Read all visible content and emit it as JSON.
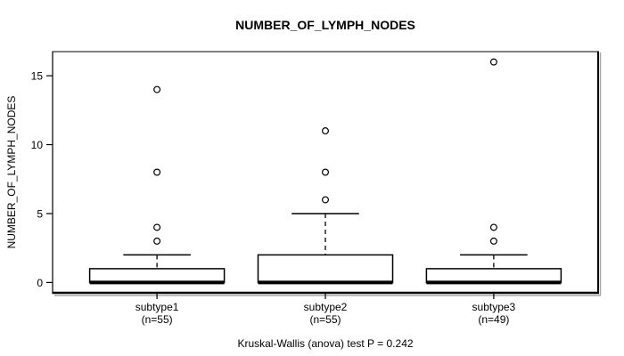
{
  "figure": {
    "title": "NUMBER_OF_LYMPH_NODES",
    "y_axis_label": "NUMBER_OF_LYMPH_NODES",
    "footnote": "Kruskal-Wallis (anova) test P = 0.242"
  },
  "colors": {
    "line": "#000000",
    "frame_top": "#808080",
    "shadow": "#a8a8a8",
    "background": "#ffffff",
    "box_fill": "#ffffff"
  },
  "chart_data": {
    "type": "boxplot",
    "title": "NUMBER_OF_LYMPH_NODES",
    "ylabel": "NUMBER_OF_LYMPH_NODES",
    "xlabel": "",
    "footnote": "Kruskal-Wallis (anova) test P = 0.242",
    "y_ticks": [
      0,
      5,
      10,
      15
    ],
    "ylim": [
      -0.75,
      16.75
    ],
    "grid": false,
    "legend": "none",
    "groups": [
      {
        "label": "subtype1",
        "sublabel": "(n=55)",
        "n": 55,
        "q1": 0,
        "median": 0,
        "q3": 1,
        "whisker_low": 0,
        "whisker_high": 2,
        "outliers": [
          3,
          4,
          8,
          14
        ]
      },
      {
        "label": "subtype2",
        "sublabel": "(n=55)",
        "n": 55,
        "q1": 0,
        "median": 0,
        "q3": 2,
        "whisker_low": 0,
        "whisker_high": 5,
        "outliers": [
          6,
          8,
          11
        ]
      },
      {
        "label": "subtype3",
        "sublabel": "(n=49)",
        "n": 49,
        "q1": 0,
        "median": 0,
        "q3": 1,
        "whisker_low": 0,
        "whisker_high": 2,
        "outliers": [
          3,
          4,
          16
        ]
      }
    ]
  }
}
